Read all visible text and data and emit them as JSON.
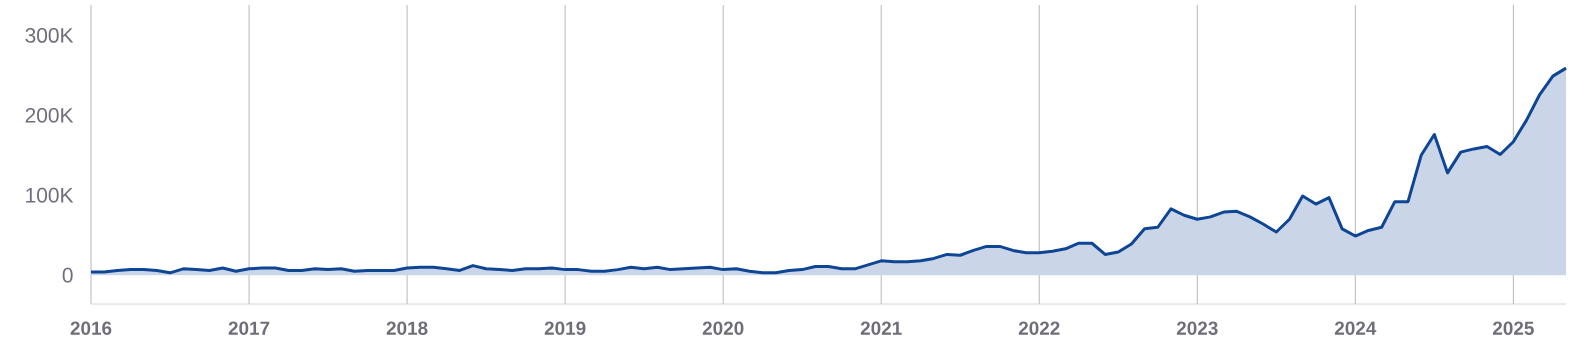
{
  "chart_data": {
    "type": "area",
    "color": "#0e4594",
    "x": [
      "2016-01",
      "2016-02",
      "2016-03",
      "2016-04",
      "2016-05",
      "2016-06",
      "2016-07",
      "2016-08",
      "2016-09",
      "2016-10",
      "2016-11",
      "2016-12",
      "2017-01",
      "2017-02",
      "2017-03",
      "2017-04",
      "2017-05",
      "2017-06",
      "2017-07",
      "2017-08",
      "2017-09",
      "2017-10",
      "2017-11",
      "2017-12",
      "2018-01",
      "2018-02",
      "2018-03",
      "2018-04",
      "2018-05",
      "2018-06",
      "2018-07",
      "2018-08",
      "2018-09",
      "2018-10",
      "2018-11",
      "2018-12",
      "2019-01",
      "2019-02",
      "2019-03",
      "2019-04",
      "2019-05",
      "2019-06",
      "2019-07",
      "2019-08",
      "2019-09",
      "2019-10",
      "2019-11",
      "2019-12",
      "2020-01",
      "2020-02",
      "2020-03",
      "2020-04",
      "2020-05",
      "2020-06",
      "2020-07",
      "2020-08",
      "2020-09",
      "2020-10",
      "2020-11",
      "2020-12",
      "2021-01",
      "2021-02",
      "2021-03",
      "2021-04",
      "2021-05",
      "2021-06",
      "2021-07",
      "2021-08",
      "2021-09",
      "2021-10",
      "2021-11",
      "2021-12",
      "2022-01",
      "2022-02",
      "2022-03",
      "2022-04",
      "2022-05",
      "2022-06",
      "2022-07",
      "2022-08",
      "2022-09",
      "2022-10",
      "2022-11",
      "2022-12",
      "2023-01",
      "2023-02",
      "2023-03",
      "2023-04",
      "2023-05",
      "2023-06",
      "2023-07",
      "2023-08",
      "2023-09",
      "2023-10",
      "2023-11",
      "2023-12",
      "2024-01",
      "2024-02",
      "2024-03",
      "2024-04",
      "2024-05",
      "2024-06",
      "2024-07",
      "2024-08",
      "2024-09",
      "2024-10",
      "2024-11",
      "2024-12",
      "2025-01",
      "2025-02",
      "2025-03",
      "2025-04",
      "2025-05"
    ],
    "values": [
      4000,
      4000,
      6000,
      7000,
      7000,
      6000,
      3000,
      8000,
      7000,
      6000,
      9000,
      5000,
      8000,
      9000,
      9000,
      6000,
      6000,
      8000,
      7000,
      8000,
      5000,
      6000,
      6000,
      6000,
      9000,
      10000,
      10000,
      8000,
      6000,
      12000,
      8000,
      7000,
      6000,
      8000,
      8000,
      9000,
      7000,
      7000,
      5000,
      5000,
      7000,
      10000,
      8000,
      10000,
      7000,
      8000,
      9000,
      10000,
      7000,
      8000,
      5000,
      3000,
      3000,
      6000,
      7000,
      11000,
      11000,
      8000,
      8000,
      13000,
      18000,
      17000,
      17000,
      18000,
      21000,
      26000,
      25000,
      31000,
      36000,
      36000,
      31000,
      28000,
      28000,
      30000,
      33000,
      40000,
      40000,
      26000,
      29000,
      39000,
      58000,
      60000,
      83000,
      75000,
      70000,
      73000,
      79000,
      80000,
      73000,
      64000,
      54000,
      70000,
      99000,
      89000,
      97000,
      58000,
      49000,
      56000,
      60000,
      92000,
      92000,
      150000,
      176000,
      128000,
      154000,
      158000,
      161000,
      151000,
      167000,
      194000,
      226000,
      249000,
      259000
    ],
    "xlim": [
      "2016-01",
      "2025-05"
    ],
    "ylim": [
      -36000,
      338000
    ],
    "xticks": [
      {
        "value": "2016-01",
        "label": "2016"
      },
      {
        "value": "2017-01",
        "label": "2017"
      },
      {
        "value": "2018-01",
        "label": "2018"
      },
      {
        "value": "2019-01",
        "label": "2019"
      },
      {
        "value": "2020-01",
        "label": "2020"
      },
      {
        "value": "2021-01",
        "label": "2021"
      },
      {
        "value": "2022-01",
        "label": "2022"
      },
      {
        "value": "2023-01",
        "label": "2023"
      },
      {
        "value": "2024-01",
        "label": "2024"
      },
      {
        "value": "2025-01",
        "label": "2025"
      }
    ],
    "yticks": [
      0,
      {
        "value": 100000,
        "label": "100K"
      },
      {
        "value": 200000,
        "label": "200K"
      },
      {
        "value": 300000,
        "label": "300K"
      }
    ],
    "grid": "x"
  }
}
